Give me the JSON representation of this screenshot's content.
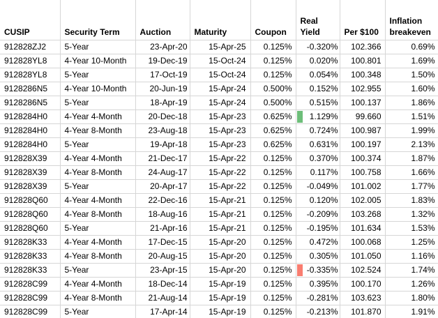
{
  "sheet": {
    "columns": [
      {
        "label": "CUSIP"
      },
      {
        "label": "Security Term"
      },
      {
        "label": "Auction"
      },
      {
        "label": "Maturity"
      },
      {
        "label": "Coupon"
      },
      {
        "label": "Real\nYield"
      },
      {
        "label": "Per $100"
      },
      {
        "label": "Inflation\nbreakeven"
      }
    ],
    "rows": [
      {
        "cells": [
          "912828ZJ2",
          "5-Year",
          "23-Apr-20",
          "15-Apr-25",
          "0.125%",
          "-0.320%",
          "102.366",
          "0.69%"
        ]
      },
      {
        "cells": [
          "912828YL8",
          "4-Year 10-Month",
          "19-Dec-19",
          "15-Oct-24",
          "0.125%",
          "0.020%",
          "100.801",
          "1.69%"
        ]
      },
      {
        "cells": [
          "912828YL8",
          "5-Year",
          "17-Oct-19",
          "15-Oct-24",
          "0.125%",
          "0.054%",
          "100.348",
          "1.50%"
        ]
      },
      {
        "cells": [
          "9128286N5",
          "4-Year 10-Month",
          "20-Jun-19",
          "15-Apr-24",
          "0.500%",
          "0.152%",
          "102.955",
          "1.60%"
        ]
      },
      {
        "cells": [
          "9128286N5",
          "5-Year",
          "18-Apr-19",
          "15-Apr-24",
          "0.500%",
          "0.515%",
          "100.137",
          "1.86%"
        ]
      },
      {
        "cells": [
          "9128284H0",
          "4-Year 4-Month",
          "20-Dec-18",
          "15-Apr-23",
          "0.625%",
          "1.129%",
          "99.660",
          "1.51%"
        ],
        "yield_bar": "green"
      },
      {
        "cells": [
          "9128284H0",
          "4-Year 8-Month",
          "23-Aug-18",
          "15-Apr-23",
          "0.625%",
          "0.724%",
          "100.987",
          "1.99%"
        ]
      },
      {
        "cells": [
          "9128284H0",
          "5-Year",
          "19-Apr-18",
          "15-Apr-23",
          "0.625%",
          "0.631%",
          "100.197",
          "2.13%"
        ]
      },
      {
        "cells": [
          "912828X39",
          "4-Year 4-Month",
          "21-Dec-17",
          "15-Apr-22",
          "0.125%",
          "0.370%",
          "100.374",
          "1.87%"
        ]
      },
      {
        "cells": [
          "912828X39",
          "4-Year 8-Month",
          "24-Aug-17",
          "15-Apr-22",
          "0.125%",
          "0.117%",
          "100.758",
          "1.66%"
        ]
      },
      {
        "cells": [
          "912828X39",
          "5-Year",
          "20-Apr-17",
          "15-Apr-22",
          "0.125%",
          "-0.049%",
          "101.002",
          "1.77%"
        ]
      },
      {
        "cells": [
          "912828Q60",
          "4-Year 4-Month",
          "22-Dec-16",
          "15-Apr-21",
          "0.125%",
          "0.120%",
          "102.005",
          "1.83%"
        ]
      },
      {
        "cells": [
          "912828Q60",
          "4-Year 8-Month",
          "18-Aug-16",
          "15-Apr-21",
          "0.125%",
          "-0.209%",
          "103.268",
          "1.32%"
        ]
      },
      {
        "cells": [
          "912828Q60",
          "5-Year",
          "21-Apr-16",
          "15-Apr-21",
          "0.125%",
          "-0.195%",
          "101.634",
          "1.53%"
        ]
      },
      {
        "cells": [
          "912828K33",
          "4-Year 4-Month",
          "17-Dec-15",
          "15-Apr-20",
          "0.125%",
          "0.472%",
          "100.068",
          "1.25%"
        ]
      },
      {
        "cells": [
          "912828K33",
          "4-Year 8-Month",
          "20-Aug-15",
          "15-Apr-20",
          "0.125%",
          "0.305%",
          "101.050",
          "1.16%"
        ]
      },
      {
        "cells": [
          "912828K33",
          "5-Year",
          "23-Apr-15",
          "15-Apr-20",
          "0.125%",
          "-0.335%",
          "102.524",
          "1.74%"
        ],
        "yield_bar": "red"
      },
      {
        "cells": [
          "912828C99",
          "4-Year 4-Month",
          "18-Dec-14",
          "15-Apr-19",
          "0.125%",
          "0.395%",
          "100.170",
          "1.26%"
        ]
      },
      {
        "cells": [
          "912828C99",
          "4-Year 8-Month",
          "21-Aug-14",
          "15-Apr-19",
          "0.125%",
          "-0.281%",
          "103.623",
          "1.80%"
        ]
      },
      {
        "cells": [
          "912828C99",
          "5-Year",
          "17-Apr-14",
          "15-Apr-19",
          "0.125%",
          "-0.213%",
          "101.870",
          "1.91%"
        ]
      }
    ],
    "conditional_colors": {
      "green": "#6dbe79",
      "red": "#f97d70"
    },
    "gridline_color": "#d6d6d6"
  }
}
